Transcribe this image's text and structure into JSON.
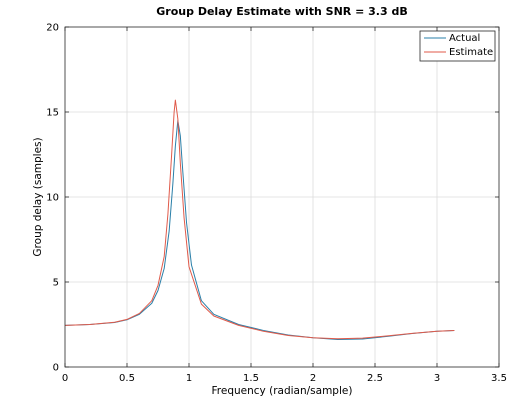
{
  "chart_data": {
    "type": "line",
    "title": "Group Delay Estimate with SNR = 3.3 dB",
    "xlabel": "Frequency (radian/sample)",
    "ylabel": "Group delay (samples)",
    "xlim": [
      0,
      3.5
    ],
    "ylim": [
      0,
      20
    ],
    "xticks": [
      "0",
      "0.5",
      "1",
      "1.5",
      "2",
      "2.5",
      "3",
      "3.5"
    ],
    "yticks": [
      "0",
      "5",
      "10",
      "15",
      "20"
    ],
    "grid": true,
    "legend_position": "top-right",
    "series": [
      {
        "name": "Actual",
        "color": "#2a7fa8",
        "x": [
          0.0,
          0.2,
          0.4,
          0.5,
          0.6,
          0.7,
          0.75,
          0.8,
          0.84,
          0.87,
          0.89,
          0.91,
          0.93,
          0.95,
          0.98,
          1.02,
          1.1,
          1.2,
          1.4,
          1.6,
          1.8,
          2.0,
          2.2,
          2.4,
          2.6,
          2.8,
          3.0,
          3.14
        ],
        "y": [
          2.45,
          2.5,
          2.62,
          2.78,
          3.1,
          3.75,
          4.5,
          5.8,
          8.0,
          10.8,
          13.0,
          14.5,
          13.6,
          11.5,
          8.5,
          6.0,
          3.9,
          3.1,
          2.5,
          2.15,
          1.88,
          1.72,
          1.62,
          1.65,
          1.8,
          1.97,
          2.1,
          2.15
        ]
      },
      {
        "name": "Estimate",
        "color": "#e05a4a",
        "x": [
          0.0,
          0.2,
          0.4,
          0.5,
          0.6,
          0.7,
          0.75,
          0.8,
          0.83,
          0.86,
          0.88,
          0.89,
          0.91,
          0.93,
          0.96,
          1.0,
          1.1,
          1.2,
          1.4,
          1.6,
          1.8,
          2.0,
          2.2,
          2.4,
          2.6,
          2.8,
          3.0,
          3.14
        ],
        "y": [
          2.45,
          2.5,
          2.63,
          2.8,
          3.15,
          3.9,
          4.8,
          6.5,
          9.0,
          12.5,
          15.0,
          15.7,
          14.6,
          12.0,
          8.8,
          5.9,
          3.7,
          3.0,
          2.45,
          2.1,
          1.85,
          1.72,
          1.66,
          1.7,
          1.83,
          1.98,
          2.1,
          2.15
        ]
      }
    ]
  }
}
